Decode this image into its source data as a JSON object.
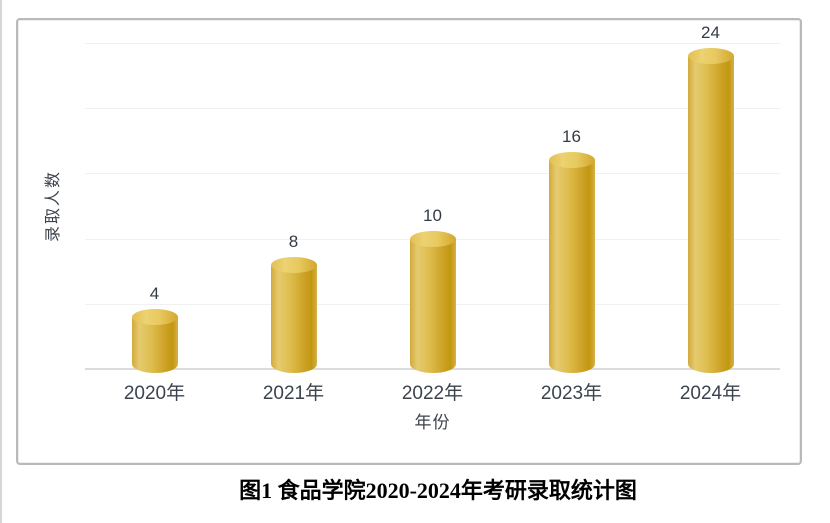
{
  "chart_data": {
    "type": "bar",
    "bar_style": "cylinder-3d",
    "categories": [
      "2020年",
      "2021年",
      "2022年",
      "2023年",
      "2024年"
    ],
    "values": [
      4,
      8,
      10,
      16,
      24
    ],
    "data_labels": [
      "4",
      "8",
      "10",
      "16",
      "24"
    ],
    "title": "",
    "xlabel": "年份",
    "ylabel": "录取人数",
    "ylim": [
      0,
      25
    ],
    "gridline_step": 5,
    "grid": true,
    "legend_position": "none",
    "y_tick_labels_visible": false,
    "colors": {
      "bar_body_light": "#e5cb70",
      "bar_body_dark": "#c2970f",
      "bar_top_light": "#ecd271",
      "bar_top_dark": "#d2a72e",
      "gridline": "#f1f1f1",
      "axis_line": "#dcdcdc",
      "label_text": "#3c434e"
    }
  },
  "caption": {
    "text": "图1 食品学院2020-2024年考研录取统计图"
  }
}
